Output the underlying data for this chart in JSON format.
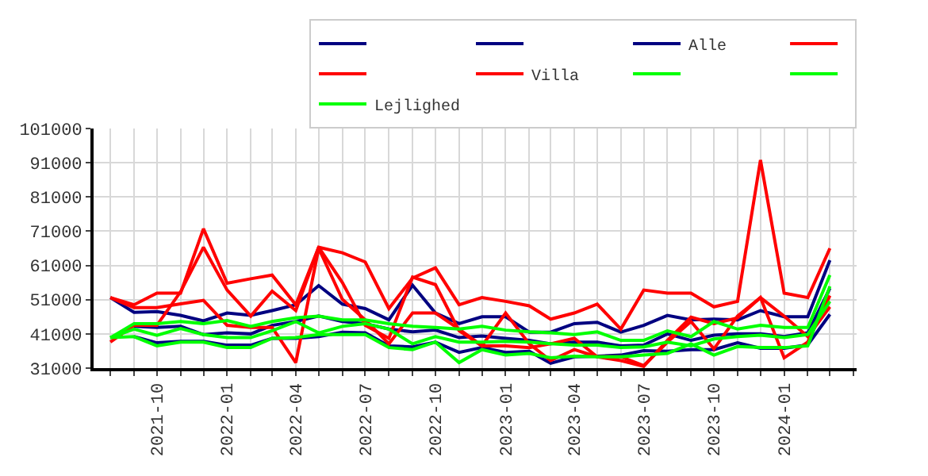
{
  "chart_data": {
    "type": "line",
    "x": [
      "2021-08",
      "2021-09",
      "2021-10",
      "2021-11",
      "2021-12",
      "2022-01",
      "2022-02",
      "2022-03",
      "2022-04",
      "2022-05",
      "2022-06",
      "2022-07",
      "2022-08",
      "2022-09",
      "2022-10",
      "2022-11",
      "2022-12",
      "2023-01",
      "2023-02",
      "2023-03",
      "2023-04",
      "2023-05",
      "2023-06",
      "2023-07",
      "2023-08",
      "2023-09",
      "2023-10",
      "2023-11",
      "2023-12",
      "2024-01",
      "2024-02",
      "2024-03"
    ],
    "series": [
      {
        "color": "#000080",
        "values": [
          51600,
          47300,
          47500,
          46400,
          44800,
          47100,
          46400,
          47800,
          49500,
          55100,
          49700,
          48400,
          45100,
          55200,
          47100,
          44000,
          46000,
          46000,
          41500,
          41500,
          44000,
          44400,
          41500,
          43500,
          46400,
          45100,
          45300,
          45100,
          47800,
          46000,
          46000,
          62500
        ]
      },
      {
        "color": "#000080",
        "values": [
          null,
          43200,
          42900,
          43200,
          40800,
          41300,
          41000,
          43500,
          44600,
          46200,
          44600,
          44000,
          42400,
          41600,
          42100,
          39900,
          40400,
          39700,
          39100,
          38100,
          38600,
          38600,
          37500,
          37700,
          41000,
          39100,
          40600,
          41000,
          41000,
          40200,
          41300,
          54300
        ]
      },
      {
        "name": "Alle",
        "color": "#000080",
        "values": [
          null,
          40200,
          38400,
          38800,
          38800,
          37700,
          37700,
          39700,
          39700,
          40200,
          41500,
          41300,
          37500,
          37200,
          38600,
          35600,
          37000,
          35600,
          35900,
          32400,
          34300,
          34500,
          34800,
          36100,
          35900,
          36400,
          36400,
          38400,
          36800,
          36800,
          37800,
          46700
        ]
      },
      {
        "color": "#ff0000",
        "values": [
          51600,
          49500,
          52900,
          52900,
          71700,
          55800,
          57100,
          58200,
          49500,
          66300,
          64700,
          62000,
          48400,
          57300,
          60300,
          49500,
          51600,
          50500,
          49200,
          45300,
          47100,
          49700,
          42400,
          53800,
          52900,
          52900,
          48900,
          50500,
          91800,
          52900,
          51600,
          66000
        ]
      },
      {
        "color": "#ff0000",
        "values": [
          51600,
          48700,
          48700,
          49800,
          50800,
          43500,
          42900,
          42900,
          32600,
          66000,
          51100,
          45100,
          38100,
          47100,
          47100,
          42400,
          37500,
          37500,
          37000,
          38100,
          39700,
          34300,
          34300,
          31700,
          38600,
          44600,
          36600,
          46200,
          51600,
          46200,
          40200,
          48900
        ]
      },
      {
        "name": "Villa",
        "color": "#ff0000",
        "values": [
          38600,
          43500,
          43500,
          53300,
          66300,
          53800,
          46200,
          53500,
          47800,
          66300,
          56000,
          43500,
          39700,
          57600,
          55400,
          41900,
          37500,
          47100,
          38100,
          33200,
          36400,
          34300,
          33200,
          31500,
          39100,
          45900,
          44000,
          45700,
          51600,
          34000,
          38600,
          52200
        ]
      },
      {
        "color": "#00ff00",
        "values": [
          39900,
          44000,
          44000,
          44600,
          44000,
          44900,
          43200,
          44600,
          45700,
          46200,
          45100,
          45100,
          44000,
          43200,
          42900,
          42400,
          43200,
          42100,
          41600,
          41300,
          40800,
          41600,
          39100,
          39100,
          41900,
          40200,
          44600,
          42400,
          43500,
          42900,
          42900,
          58200
        ]
      },
      {
        "color": "#00ff00",
        "values": [
          39900,
          42400,
          40600,
          42600,
          40800,
          39900,
          39900,
          41900,
          44600,
          41300,
          43200,
          44000,
          42400,
          38100,
          40200,
          38600,
          38600,
          38800,
          38600,
          38100,
          37700,
          37700,
          37000,
          37200,
          38600,
          37500,
          39500,
          40200,
          40600,
          39900,
          40800,
          50500
        ]
      },
      {
        "name": "Lejlighed",
        "color": "#00ff00",
        "values": [
          39900,
          40200,
          37500,
          38600,
          38600,
          37000,
          37000,
          39700,
          39900,
          40800,
          40800,
          40800,
          37000,
          36400,
          38600,
          32600,
          36400,
          34800,
          35300,
          34000,
          34500,
          34300,
          34300,
          34800,
          35300,
          38100,
          34800,
          37300,
          37000,
          37000,
          37500,
          54900
        ]
      }
    ],
    "xlim": [
      "2021-07-10",
      "2024-04-05"
    ],
    "xticks": [
      {
        "value": "2021-08",
        "label": null
      },
      {
        "value": "2021-09",
        "label": null
      },
      "2021-10",
      {
        "value": "2021-11",
        "label": null
      },
      {
        "value": "2021-12",
        "label": null
      },
      "2022-01",
      {
        "value": "2022-02",
        "label": null
      },
      {
        "value": "2022-03",
        "label": null
      },
      "2022-04",
      {
        "value": "2022-05",
        "label": null
      },
      {
        "value": "2022-06",
        "label": null
      },
      "2022-07",
      {
        "value": "2022-08",
        "label": null
      },
      {
        "value": "2022-09",
        "label": null
      },
      "2022-10",
      {
        "value": "2022-11",
        "label": null
      },
      {
        "value": "2022-12",
        "label": null
      },
      "2023-01",
      {
        "value": "2023-02",
        "label": null
      },
      {
        "value": "2023-03",
        "label": null
      },
      "2023-04",
      {
        "value": "2023-05",
        "label": null
      },
      {
        "value": "2023-06",
        "label": null
      },
      "2023-07",
      {
        "value": "2023-08",
        "label": null
      },
      {
        "value": "2023-09",
        "label": null
      },
      "2023-10",
      {
        "value": "2023-11",
        "label": null
      },
      {
        "value": "2023-12",
        "label": null
      },
      "2024-01",
      {
        "value": "2024-02",
        "label": null
      },
      {
        "value": "2024-03",
        "label": null
      },
      {
        "value": "2024-04",
        "label": null
      }
    ],
    "ylim": [
      31000,
      101000
    ],
    "yticks": [
      31000,
      41000,
      51000,
      61000,
      71000,
      81000,
      91000,
      101000
    ],
    "grid": true,
    "legend": "top right",
    "marker": "none",
    "line_style": "solid"
  }
}
